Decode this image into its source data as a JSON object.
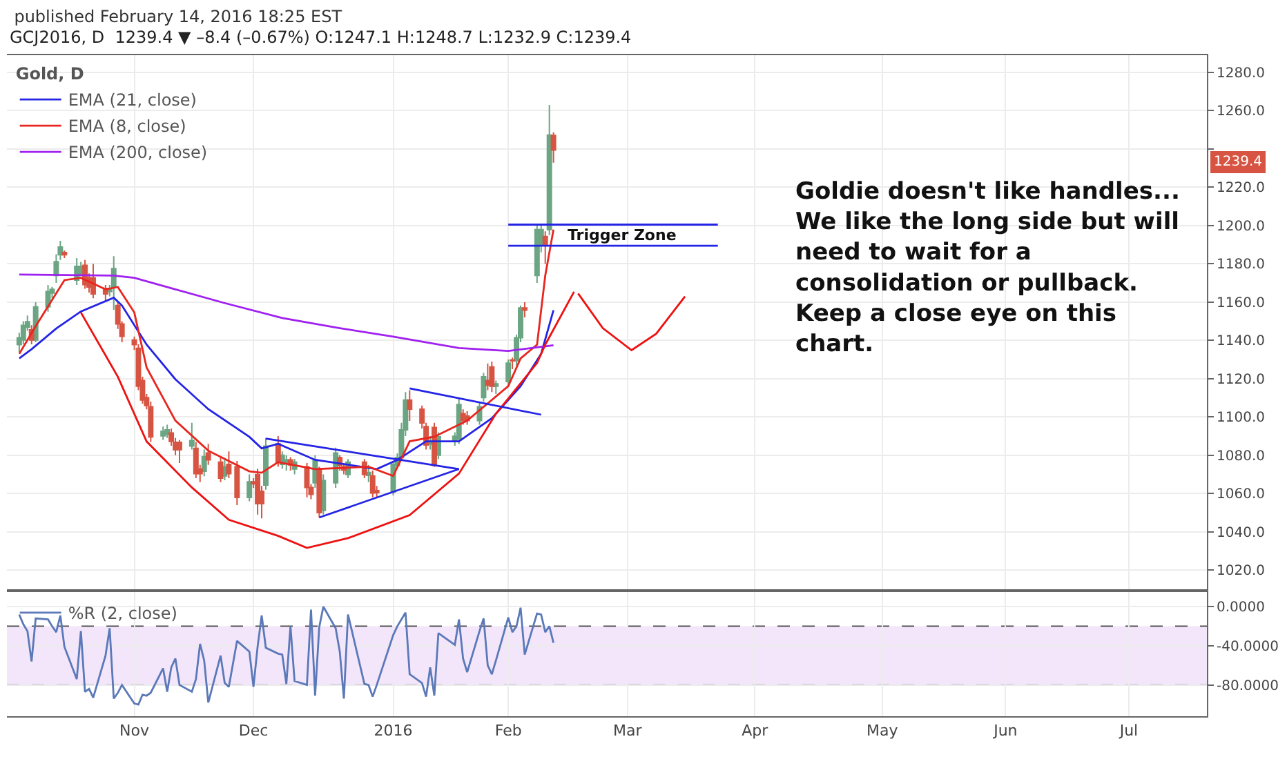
{
  "chart_data": [
    {
      "type": "candlestick",
      "title": "published February 14, 2016 18:25 EST",
      "subtitle": "GCJ2016, D  1239.4 ▼ –8.4 (–0.67%) O:1247.1 H:1248.7 L:1232.9 C:1239.4",
      "legend_title": "Gold, D",
      "legend": "top left",
      "grid": true,
      "tick_labels": "y",
      "x": [
        "2015-10-05",
        "2015-10-06",
        "2015-10-07",
        "2015-10-08",
        "2015-10-09",
        "2015-10-12",
        "2015-10-13",
        "2015-10-14",
        "2015-10-15",
        "2015-10-16",
        "2015-10-19",
        "2015-10-20",
        "2015-10-21",
        "2015-10-22",
        "2015-10-23",
        "2015-10-26",
        "2015-10-27",
        "2015-10-28",
        "2015-10-29",
        "2015-10-30",
        "2015-11-02",
        "2015-11-03",
        "2015-11-04",
        "2015-11-05",
        "2015-11-06",
        "2015-11-09",
        "2015-11-10",
        "2015-11-11",
        "2015-11-12",
        "2015-11-13",
        "2015-11-16",
        "2015-11-17",
        "2015-11-18",
        "2015-11-19",
        "2015-11-20",
        "2015-11-23",
        "2015-11-24",
        "2015-11-25",
        "2015-11-27",
        "2015-11-30",
        "2015-12-01",
        "2015-12-02",
        "2015-12-03",
        "2015-12-04",
        "2015-12-07",
        "2015-12-08",
        "2015-12-09",
        "2015-12-10",
        "2015-12-11",
        "2015-12-14",
        "2015-12-15",
        "2015-12-16",
        "2015-12-17",
        "2015-12-18",
        "2015-12-21",
        "2015-12-22",
        "2015-12-23",
        "2015-12-24",
        "2015-12-28",
        "2015-12-29",
        "2015-12-30",
        "2015-12-31",
        "2016-01-04",
        "2016-01-05",
        "2016-01-06",
        "2016-01-07",
        "2016-01-08",
        "2016-01-11",
        "2016-01-12",
        "2016-01-13",
        "2016-01-14",
        "2016-01-15",
        "2016-01-19",
        "2016-01-20",
        "2016-01-21",
        "2016-01-22",
        "2016-01-25",
        "2016-01-26",
        "2016-01-27",
        "2016-01-28",
        "2016-01-29",
        "2016-02-01",
        "2016-02-02",
        "2016-02-03",
        "2016-02-04",
        "2016-02-05",
        "2016-02-08",
        "2016-02-09",
        "2016-02-10",
        "2016-02-11",
        "2016-02-12"
      ],
      "ohlc": [
        [
          1137.8,
          1144,
          1134,
          1141.4
        ],
        [
          1140.2,
          1150,
          1138,
          1147.9
        ],
        [
          1146.9,
          1153,
          1145,
          1149.8
        ],
        [
          1145.5,
          1148,
          1138,
          1140.2
        ],
        [
          1140.2,
          1160,
          1139,
          1157.5
        ],
        [
          1157.5,
          1169,
          1155,
          1165.5
        ],
        [
          1164.7,
          1168,
          1162,
          1166.7
        ],
        [
          1173.9,
          1185,
          1170,
          1181.1
        ],
        [
          1184.7,
          1192,
          1182,
          1188.8
        ],
        [
          1185.9,
          1187,
          1183,
          1184.7
        ],
        [
          1171.5,
          1183,
          1169,
          1178.7
        ],
        [
          1173.9,
          1181,
          1173.9,
          1178.7
        ],
        [
          1179.2,
          1182,
          1167,
          1169.1
        ],
        [
          1172.7,
          1175,
          1165,
          1167.9
        ],
        [
          1172.7,
          1180,
          1162,
          1164.3
        ],
        [
          1167.2,
          1169,
          1161,
          1164.3
        ],
        [
          1165.5,
          1169,
          1163,
          1167.2
        ],
        [
          1167.9,
          1184,
          1156,
          1177.5
        ],
        [
          1158.2,
          1160,
          1146,
          1148.6
        ],
        [
          1148.6,
          1150,
          1139,
          1142.1
        ],
        [
          1140.2,
          1142,
          1135,
          1137.8
        ],
        [
          1135.9,
          1138,
          1114,
          1116.1
        ],
        [
          1119.0,
          1121,
          1107,
          1108.9
        ],
        [
          1110.1,
          1112,
          1104,
          1106.0
        ],
        [
          1105.3,
          1108,
          1087,
          1089.6
        ],
        [
          1090.1,
          1095,
          1088,
          1092.5
        ],
        [
          1090.9,
          1096,
          1089,
          1093.3
        ],
        [
          1091.6,
          1094,
          1085,
          1087.2
        ],
        [
          1086.8,
          1089,
          1080,
          1082.9
        ],
        [
          1086.8,
          1088,
          1076,
          1082.9
        ],
        [
          1084.8,
          1097,
          1083,
          1087.7
        ],
        [
          1083.6,
          1087,
          1068,
          1070.4
        ],
        [
          1072.8,
          1075,
          1066,
          1070.4
        ],
        [
          1071.6,
          1083,
          1069,
          1079.3
        ],
        [
          1081.2,
          1086,
          1075,
          1077.6
        ],
        [
          1076.4,
          1079,
          1066,
          1068.0
        ],
        [
          1069.2,
          1078,
          1067,
          1074.0
        ],
        [
          1075.2,
          1082,
          1068,
          1070.4
        ],
        [
          1074.0,
          1077,
          1054,
          1057.9
        ],
        [
          1057.9,
          1070,
          1056,
          1066.1
        ],
        [
          1066.1,
          1068,
          1063,
          1065.1
        ],
        [
          1069.9,
          1073,
          1049,
          1054.7
        ],
        [
          1061.2,
          1064,
          1047,
          1054.7
        ],
        [
          1064.4,
          1089,
          1062,
          1084.8
        ],
        [
          1086.0,
          1090,
          1074,
          1076.4
        ],
        [
          1075.2,
          1082,
          1073,
          1080.0
        ],
        [
          1076.4,
          1080,
          1072,
          1077.6
        ],
        [
          1077.6,
          1079,
          1072,
          1075.0
        ],
        [
          1072.8,
          1078,
          1070,
          1076.4
        ],
        [
          1074.0,
          1076,
          1058,
          1063.2
        ],
        [
          1063.2,
          1065,
          1057,
          1059.6
        ],
        [
          1065.6,
          1080,
          1063,
          1077.6
        ],
        [
          1072.8,
          1074,
          1047.5,
          1050.0
        ],
        [
          1051.2,
          1070,
          1049,
          1066.8
        ],
        [
          1065.6,
          1084,
          1063,
          1081.2
        ],
        [
          1078.8,
          1080,
          1072,
          1074.7
        ],
        [
          1074.0,
          1076,
          1070,
          1072.3
        ],
        [
          1069.9,
          1078,
          1068,
          1076.4
        ],
        [
          1076.4,
          1078,
          1068,
          1069.9
        ],
        [
          1069.5,
          1075,
          1066,
          1071.0
        ],
        [
          1069.2,
          1072,
          1058,
          1060.3
        ],
        [
          1061.5,
          1064,
          1058,
          1060.5
        ],
        [
          1060.8,
          1077,
          1059,
          1075.2
        ],
        [
          1074.7,
          1081,
          1073,
          1078.8
        ],
        [
          1078.8,
          1097,
          1077,
          1093.3
        ],
        [
          1093.3,
          1113,
          1090,
          1108.9
        ],
        [
          1108.9,
          1114,
          1098,
          1104.1
        ],
        [
          1104.1,
          1106,
          1094,
          1096.9
        ],
        [
          1095.0,
          1097,
          1083,
          1085.3
        ],
        [
          1085.8,
          1090,
          1083,
          1086.8
        ],
        [
          1094.5,
          1097,
          1074,
          1074.7
        ],
        [
          1080.0,
          1092,
          1078,
          1089.7
        ],
        [
          1087.5,
          1092,
          1085,
          1089.9
        ],
        [
          1088.5,
          1110,
          1086,
          1106.5
        ],
        [
          1101.7,
          1104,
          1096,
          1098.1
        ],
        [
          1100.5,
          1103,
          1096,
          1098.1
        ],
        [
          1098.1,
          1108,
          1096,
          1105.3
        ],
        [
          1110.1,
          1123,
          1108,
          1121.0
        ],
        [
          1119.0,
          1128,
          1114,
          1116.6
        ],
        [
          1126.2,
          1129,
          1113,
          1116.1
        ],
        [
          1116.1,
          1119,
          1112,
          1117.3
        ],
        [
          1118.5,
          1130,
          1116,
          1128.1
        ],
        [
          1129.8,
          1131,
          1125,
          1129.3
        ],
        [
          1129.3,
          1143,
          1127,
          1141.4
        ],
        [
          1141.4,
          1158.2,
          1139,
          1157.0
        ],
        [
          1157.0,
          1160,
          1152,
          1155.8
        ],
        [
          1173.9,
          1201,
          1170,
          1197.9
        ],
        [
          1189.5,
          1200,
          1186,
          1197.9
        ],
        [
          1194.3,
          1197,
          1180,
          1190.2
        ],
        [
          1197.9,
          1263,
          1195,
          1247.3
        ],
        [
          1247.1,
          1248.7,
          1232.9,
          1239.4
        ]
      ],
      "colors": [
        "#6ba583",
        "#6ba583",
        "#6ba583",
        "#d75442",
        "#6ba583",
        "#6ba583",
        "#6ba583",
        "#6ba583",
        "#6ba583",
        "#d75442",
        "#6ba583",
        "#6ba583",
        "#d75442",
        "#d75442",
        "#d75442",
        "#d75442",
        "#6ba583",
        "#6ba583",
        "#d75442",
        "#d75442",
        "#d75442",
        "#d75442",
        "#d75442",
        "#d75442",
        "#d75442",
        "#6ba583",
        "#6ba583",
        "#d75442",
        "#d75442",
        "#d75442",
        "#6ba583",
        "#d75442",
        "#d75442",
        "#6ba583",
        "#d75442",
        "#d75442",
        "#6ba583",
        "#d75442",
        "#d75442",
        "#6ba583",
        "#d75442",
        "#d75442",
        "#d75442",
        "#6ba583",
        "#d75442",
        "#6ba583",
        "#6ba583",
        "#d75442",
        "#6ba583",
        "#d75442",
        "#d75442",
        "#6ba583",
        "#d75442",
        "#6ba583",
        "#6ba583",
        "#d75442",
        "#d75442",
        "#6ba583",
        "#d75442",
        "#6ba583",
        "#d75442",
        "#d75442",
        "#6ba583",
        "#6ba583",
        "#6ba583",
        "#6ba583",
        "#d75442",
        "#d75442",
        "#d75442",
        "#6ba583",
        "#d75442",
        "#6ba583",
        "#6ba583",
        "#6ba583",
        "#d75442",
        "#d75442",
        "#6ba583",
        "#6ba583",
        "#d75442",
        "#d75442",
        "#6ba583",
        "#6ba583",
        "#d75442",
        "#6ba583",
        "#6ba583",
        "#d75442",
        "#6ba583",
        "#6ba583",
        "#d75442",
        "#6ba583",
        "#d75442"
      ],
      "series": [
        {
          "type": "line",
          "name": "EMA (21, close)",
          "color": "#2424e6",
          "x": [
            "2015-10-05",
            "2015-10-08",
            "2015-10-14",
            "2015-10-20",
            "2015-10-28",
            "2015-10-30",
            "2015-11-05",
            "2015-11-12",
            "2015-11-20",
            "2015-11-30",
            "2015-12-03",
            "2015-12-07",
            "2015-12-16",
            "2015-12-31",
            "2016-01-05",
            "2016-01-12",
            "2016-01-20",
            "2016-01-28",
            "2016-02-04",
            "2016-02-09",
            "2016-02-12"
          ],
          "values": [
            1130.6,
            1135.4,
            1146.2,
            1155.1,
            1162.3,
            1158.2,
            1137.8,
            1119.7,
            1104.1,
            1089.6,
            1083.6,
            1086,
            1077.6,
            1072.8,
            1077.6,
            1087.3,
            1087.3,
            1099.3,
            1116.1,
            1133,
            1155.8
          ]
        },
        {
          "type": "line",
          "name": "EMA (8, close)",
          "color": "#e8261f",
          "x": [
            "2015-10-05",
            "2015-10-09",
            "2015-10-16",
            "2015-10-20",
            "2015-10-26",
            "2015-10-29",
            "2015-11-02",
            "2015-11-05",
            "2015-11-12",
            "2015-11-20",
            "2015-11-30",
            "2015-12-03",
            "2015-12-07",
            "2015-12-16",
            "2015-12-29",
            "2016-01-04",
            "2016-01-08",
            "2016-01-14",
            "2016-01-22",
            "2016-02-01",
            "2016-02-04",
            "2016-02-08",
            "2016-02-10",
            "2016-02-12"
          ],
          "values": [
            1133,
            1147.4,
            1171.5,
            1172.7,
            1166.7,
            1167.9,
            1154.6,
            1125.8,
            1098.1,
            1082.4,
            1071.6,
            1070.9,
            1076.4,
            1072.8,
            1074,
            1069.2,
            1087.3,
            1089.7,
            1098.1,
            1116.1,
            1130.6,
            1137.8,
            1173.9,
            1197.9
          ]
        },
        {
          "type": "line",
          "name": "EMA (200, close)",
          "color": "#a020f0",
          "x": [
            "2015-10-05",
            "2015-10-28",
            "2015-11-02",
            "2015-11-12",
            "2015-11-24",
            "2015-12-08",
            "2015-12-22",
            "2016-01-04",
            "2016-01-20",
            "2016-02-01",
            "2016-02-12"
          ],
          "values": [
            1174.4,
            1173.9,
            1172.7,
            1166.7,
            1159.5,
            1151.7,
            1146.4,
            1142,
            1136,
            1134.5,
            1137.5
          ]
        },
        {
          "type": "line",
          "color": "#ee1111",
          "x": [
            "2015-10-20",
            "2015-10-29",
            "2015-11-05",
            "2015-11-16",
            "2015-11-25",
            "2015-12-07",
            "2015-12-14",
            "2015-12-24",
            "2016-01-08",
            "2016-01-20",
            "2016-01-29",
            "2016-02-08",
            "2016-02-10",
            "2016-02-17"
          ],
          "values": [
            1154.6,
            1121,
            1087.2,
            1063.2,
            1046.3,
            1037.9,
            1031.6,
            1036.7,
            1048.7,
            1070.4,
            1101.7,
            1128.2,
            1137.8,
            1165.4
          ]
        },
        {
          "type": "line",
          "color": "#ee1111",
          "x": [
            "2016-02-18",
            "2016-02-24",
            "2016-03-02",
            "2016-03-08",
            "2016-03-15"
          ],
          "values": [
            1164.5,
            1146.4,
            1134.9,
            1143.5,
            1163.0
          ]
        },
        {
          "type": "line",
          "color": "#2424e6",
          "x": [
            "2016-02-01",
            "2016-03-23"
          ],
          "values": [
            1200.5,
            1200.5
          ]
        },
        {
          "type": "line",
          "color": "#2424e6",
          "x": [
            "2016-02-01",
            "2016-03-23"
          ],
          "values": [
            1189.5,
            1189.5
          ]
        },
        {
          "type": "line",
          "color": "#2424e6",
          "x": [
            "2015-12-04",
            "2016-01-20"
          ],
          "values": [
            1088.7,
            1072.8
          ]
        },
        {
          "type": "line",
          "color": "#2424e6",
          "x": [
            "2015-12-17",
            "2016-01-20"
          ],
          "values": [
            1047.5,
            1072.8
          ]
        },
        {
          "type": "line",
          "color": "#2424e6",
          "x": [
            "2016-01-08",
            "2016-02-09"
          ],
          "values": [
            1114.9,
            1101.2
          ]
        }
      ],
      "annotations": [
        "Trigger Zone",
        "1239.4",
        "Goldie doesn't like handles... We like the long side but will need to wait for a consolidation or pullback. Keep a close eye on this chart."
      ],
      "xlim": [
        "2015-10-02",
        "2016-07-20"
      ],
      "xticks": [
        {
          "value": "2015-11-02",
          "label": null
        },
        {
          "value": "2015-12-01",
          "label": null
        },
        {
          "value": "2016-01-04",
          "label": null
        },
        {
          "value": "2016-02-01",
          "label": null
        },
        {
          "value": "2016-03-01",
          "label": null
        },
        {
          "value": "2016-04-01",
          "label": null
        },
        {
          "value": "2016-05-02",
          "label": null
        },
        {
          "value": "2016-06-01",
          "label": null
        },
        {
          "value": "2016-07-01",
          "label": null
        }
      ],
      "ylim": [
        1010,
        1289
      ],
      "yticks": [
        {
          "value": 1020,
          "label": "1020.0"
        },
        {
          "value": 1040,
          "label": "1040.0"
        },
        {
          "value": 1060,
          "label": "1060.0"
        },
        {
          "value": 1080,
          "label": "1080.0"
        },
        {
          "value": 1100,
          "label": "1100.0"
        },
        {
          "value": 1120,
          "label": "1120.0"
        },
        {
          "value": 1140,
          "label": "1140.0"
        },
        {
          "value": 1160,
          "label": "1160.0"
        },
        {
          "value": 1180,
          "label": "1180.0"
        },
        {
          "value": 1200,
          "label": "1200.0"
        },
        {
          "value": 1220,
          "label": "1220.0"
        },
        {
          "value": 1240,
          "label": null
        },
        {
          "value": 1260,
          "label": "1260.0"
        },
        {
          "value": 1280,
          "label": "1280.0"
        }
      ]
    },
    {
      "type": "line",
      "legend": "top left",
      "grid": true,
      "x": [
        "2015-10-05",
        "2015-10-06",
        "2015-10-07",
        "2015-10-08",
        "2015-10-09",
        "2015-10-12",
        "2015-10-13",
        "2015-10-14",
        "2015-10-15",
        "2015-10-16",
        "2015-10-19",
        "2015-10-20",
        "2015-10-21",
        "2015-10-22",
        "2015-10-23",
        "2015-10-26",
        "2015-10-27",
        "2015-10-28",
        "2015-10-29",
        "2015-10-30",
        "2015-11-02",
        "2015-11-03",
        "2015-11-04",
        "2015-11-05",
        "2015-11-06",
        "2015-11-09",
        "2015-11-10",
        "2015-11-11",
        "2015-11-12",
        "2015-11-13",
        "2015-11-16",
        "2015-11-17",
        "2015-11-18",
        "2015-11-19",
        "2015-11-20",
        "2015-11-23",
        "2015-11-24",
        "2015-11-25",
        "2015-11-27",
        "2015-11-30",
        "2015-12-01",
        "2015-12-02",
        "2015-12-03",
        "2015-12-04",
        "2015-12-07",
        "2015-12-08",
        "2015-12-09",
        "2015-12-10",
        "2015-12-11",
        "2015-12-14",
        "2015-12-15",
        "2015-12-16",
        "2015-12-17",
        "2015-12-18",
        "2015-12-21",
        "2015-12-22",
        "2015-12-23",
        "2015-12-24",
        "2015-12-28",
        "2015-12-29",
        "2015-12-30",
        "2015-12-31",
        "2016-01-04",
        "2016-01-05",
        "2016-01-06",
        "2016-01-07",
        "2016-01-08",
        "2016-01-11",
        "2016-01-12",
        "2016-01-13",
        "2016-01-14",
        "2016-01-15",
        "2016-01-19",
        "2016-01-20",
        "2016-01-21",
        "2016-01-22",
        "2016-01-25",
        "2016-01-26",
        "2016-01-27",
        "2016-01-28",
        "2016-01-29",
        "2016-02-01",
        "2016-02-02",
        "2016-02-03",
        "2016-02-04",
        "2016-02-05",
        "2016-02-08",
        "2016-02-09",
        "2016-02-10",
        "2016-02-11",
        "2016-02-12"
      ],
      "series": [
        {
          "name": "%R (2, close)",
          "color": "#5b79b8",
          "values": [
            -8,
            -18,
            -25,
            -56,
            -12,
            -13,
            -20,
            -26,
            -9,
            -41,
            -74,
            -25,
            -87,
            -84,
            -93,
            -50,
            -22,
            -94,
            -88,
            -80,
            -99,
            -100,
            -90,
            -91,
            -88,
            -63,
            -87,
            -62,
            -53,
            -80,
            -87,
            -74,
            -38,
            -55,
            -98,
            -50,
            -78,
            -82,
            -35,
            -46,
            -82,
            -41,
            -9,
            -42,
            -48,
            -49,
            -79,
            -20,
            -76,
            -80,
            -3,
            -91,
            -21,
            0,
            -22,
            -46,
            -94,
            -8,
            -79,
            -80,
            -92,
            -80,
            -29,
            -20,
            -13,
            -6,
            -69,
            -78,
            -92,
            -62,
            -91,
            -27,
            -39,
            -13,
            -53,
            -67,
            -25,
            -12,
            -60,
            -69,
            -55,
            -11,
            -26,
            -20,
            -1,
            -49,
            -7,
            -8,
            -26,
            -20,
            -37
          ]
        }
      ],
      "bands": [
        {
          "axis": "y",
          "from": -80,
          "to": -20,
          "color": "#f3e6fb"
        }
      ],
      "ref_lines": [
        {
          "axis": "y",
          "value": -20,
          "line_style": "dashed",
          "color": "#555555"
        },
        {
          "axis": "y",
          "value": -80,
          "line_style": "dashed",
          "color": "#555555"
        }
      ],
      "xlim": [
        "2015-10-02",
        "2016-07-20"
      ],
      "xticks": [
        {
          "value": "2015-11-02",
          "label": "Nov"
        },
        {
          "value": "2015-12-01",
          "label": "Dec"
        },
        {
          "value": "2016-01-04",
          "label": "2016"
        },
        {
          "value": "2016-02-01",
          "label": "Feb"
        },
        {
          "value": "2016-03-01",
          "label": "Mar"
        },
        {
          "value": "2016-04-01",
          "label": "Apr"
        },
        {
          "value": "2016-05-02",
          "label": "May"
        },
        {
          "value": "2016-06-01",
          "label": "Jun"
        },
        {
          "value": "2016-07-01",
          "label": "Jul"
        }
      ],
      "ylim": [
        -112,
        15
      ],
      "yticks": [
        {
          "value": 0,
          "label": "0.0000"
        },
        {
          "value": -40,
          "label": "-40.0000"
        },
        {
          "value": -80,
          "label": "-80.0000"
        }
      ]
    }
  ]
}
